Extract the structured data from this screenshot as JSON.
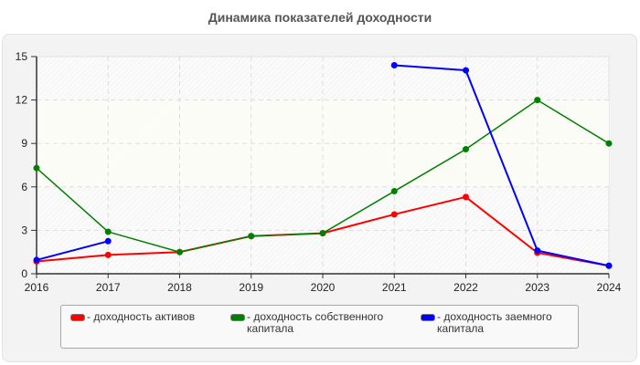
{
  "title": "Динамика показателей доходности",
  "chart_data": {
    "type": "line",
    "title": "Динамика показателей доходности",
    "xlabel": "",
    "ylabel": "",
    "x": [
      "2016",
      "2017",
      "2018",
      "2019",
      "2020",
      "2021",
      "2022",
      "2023",
      "2024"
    ],
    "yticks": [
      "0",
      "3",
      "6",
      "9",
      "12",
      "15"
    ],
    "ylim": [
      0,
      15
    ],
    "grid": true,
    "legend_position": "bottom",
    "series": [
      {
        "name": "доходность активов",
        "color": "#ff0000",
        "values": [
          0.85,
          1.3,
          1.5,
          2.6,
          2.8,
          4.1,
          5.3,
          1.45,
          0.55
        ]
      },
      {
        "name": "доходность собственного капитала",
        "color": "#008000",
        "values": [
          7.3,
          2.9,
          1.5,
          2.6,
          2.8,
          5.7,
          8.6,
          12.0,
          9.0
        ]
      },
      {
        "name": "доходность заемного капитала",
        "color": "#0000ff",
        "values": [
          0.95,
          2.25,
          null,
          null,
          null,
          14.4,
          14.05,
          1.6,
          0.55
        ]
      }
    ]
  },
  "legend": {
    "items": [
      {
        "label": "- доходность активов",
        "color": "#ff0000"
      },
      {
        "label": "- доходность собственного\nкапитала",
        "color": "#008000"
      },
      {
        "label": "- доходность заемного\nкапитала",
        "color": "#0000ff"
      }
    ]
  }
}
